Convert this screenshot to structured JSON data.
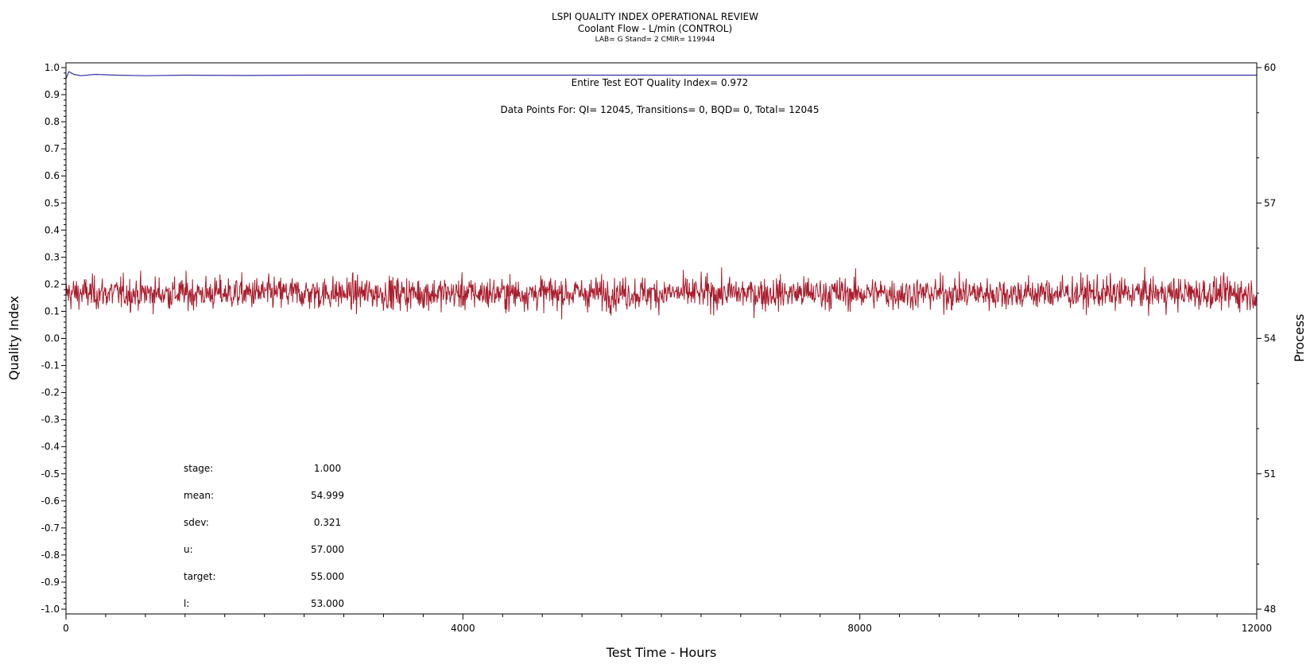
{
  "chart_data": {
    "type": "line",
    "title": "LSPI QUALITY INDEX OPERATIONAL REVIEW",
    "subtitle": "Coolant Flow - L/min (CONTROL)",
    "subtitle2": "LAB= G Stand= 2 CMIR= 119944",
    "xlabel": "Test Time - Hours",
    "ylabel": "Quality Index",
    "y2label": "Process",
    "xlim": [
      0,
      12000
    ],
    "ylim": [
      -1.0,
      1.0
    ],
    "y2lim": [
      48,
      60
    ],
    "x_ticks": [
      0,
      4000,
      8000,
      12000
    ],
    "x_tick_labels": [
      "0",
      "4000",
      "8000",
      "12000"
    ],
    "y_ticks": [
      1.0,
      0.9,
      0.8,
      0.7,
      0.6,
      0.5,
      0.4,
      0.3,
      0.2,
      0.1,
      0.0,
      -0.1,
      -0.2,
      -0.3,
      -0.4,
      -0.5,
      -0.6,
      -0.7,
      -0.8,
      -0.9,
      -1.0
    ],
    "y_tick_labels": [
      "1.0",
      "0.9",
      "0.8",
      "0.7",
      "0.6",
      "0.5",
      "0.4",
      "0.3",
      "0.2",
      "0.1",
      "0.0",
      "-0.1",
      "-0.2",
      "-0.3",
      "-0.4",
      "-0.5",
      "-0.6",
      "-0.7",
      "-0.8",
      "-0.9",
      "-1.0"
    ],
    "y2_ticks": [
      60,
      57,
      54,
      51,
      48
    ],
    "y2_tick_labels": [
      "60",
      "57",
      "54",
      "51",
      "48"
    ],
    "annotations": [
      "Entire Test EOT Quality Index=   0.972",
      "Data Points For: QI= 12045, Transitions=     0, BQD=     0, Total= 12045"
    ],
    "stats": [
      {
        "label": "stage:",
        "value": "1.000"
      },
      {
        "label": "mean:",
        "value": "54.999"
      },
      {
        "label": "sdev:",
        "value": "0.321"
      },
      {
        "label": "u:",
        "value": "57.000"
      },
      {
        "label": "target:",
        "value": "55.000"
      },
      {
        "label": "l:",
        "value": "53.000"
      }
    ],
    "series": [
      {
        "axis": "left",
        "color": "#3333aa",
        "points": [
          [
            0,
            0.96
          ],
          [
            30,
            0.985
          ],
          [
            80,
            0.975
          ],
          [
            150,
            0.97
          ],
          [
            300,
            0.975
          ],
          [
            500,
            0.972
          ],
          [
            800,
            0.97
          ],
          [
            1200,
            0.972
          ],
          [
            1800,
            0.971
          ],
          [
            2400,
            0.972
          ],
          [
            3000,
            0.972
          ],
          [
            6000,
            0.972
          ],
          [
            9000,
            0.972
          ],
          [
            12000,
            0.972
          ]
        ]
      },
      {
        "axis": "right",
        "color": "#aa1c2c",
        "process_mean": 54.999,
        "process_sdev": 0.321,
        "process_range": [
          53.7,
          56.5
        ],
        "x_range": [
          0,
          12045
        ],
        "n_points": 12045
      }
    ]
  }
}
